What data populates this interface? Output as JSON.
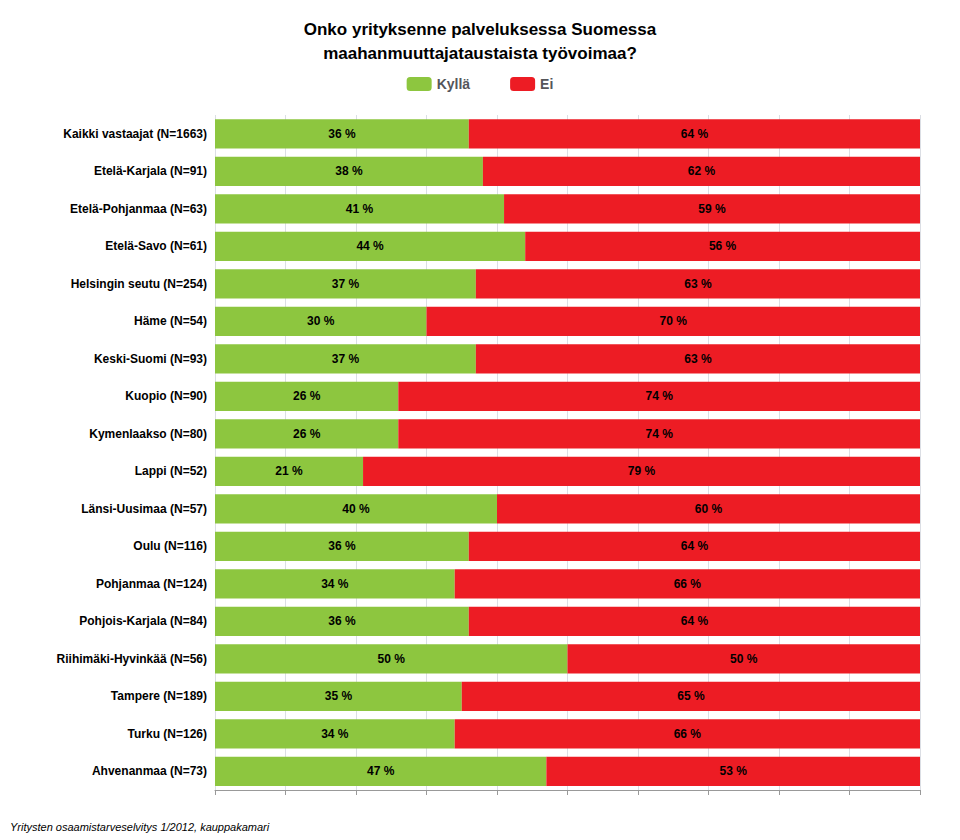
{
  "chart_data": {
    "type": "bar",
    "orientation": "horizontal",
    "stacked": true,
    "title": "Onko yrityksenne palveluksessa Suomessa\nmaahanmuuttajataustaista työvoimaa?",
    "categories": [
      "Kaikki vastaajat (N=1663)",
      "Etelä-Karjala (N=91)",
      "Etelä-Pohjanmaa (N=63)",
      "Etelä-Savo (N=61)",
      "Helsingin seutu (N=254)",
      "Häme (N=54)",
      "Keski-Suomi (N=93)",
      "Kuopio (N=90)",
      "Kymenlaakso (N=80)",
      "Lappi (N=52)",
      "Länsi-Uusimaa (N=57)",
      "Oulu (N=116)",
      "Pohjanmaa (N=124)",
      "Pohjois-Karjala (N=84)",
      "Riihimäki-Hyvinkää (N=56)",
      "Tampere (N=189)",
      "Turku (N=126)",
      "Ahvenanmaa (N=73)"
    ],
    "series": [
      {
        "name": "Kyllä",
        "color": "#8DC63F",
        "values": [
          36,
          38,
          41,
          44,
          37,
          30,
          37,
          26,
          26,
          21,
          40,
          36,
          34,
          36,
          50,
          35,
          34,
          47
        ],
        "value_labels": [
          "36 %",
          "38 %",
          "41 %",
          "44 %",
          "37 %",
          "30 %",
          "37 %",
          "26 %",
          "26 %",
          "21 %",
          "40 %",
          "36 %",
          "34 %",
          "36 %",
          "50 %",
          "35 %",
          "34 %",
          "47 %"
        ]
      },
      {
        "name": "Ei",
        "color": "#ED1C24",
        "values": [
          64,
          62,
          59,
          56,
          63,
          70,
          63,
          74,
          74,
          79,
          60,
          64,
          66,
          64,
          50,
          65,
          66,
          53
        ],
        "value_labels": [
          "64 %",
          "62 %",
          "59 %",
          "56 %",
          "63 %",
          "70 %",
          "63 %",
          "74 %",
          "74 %",
          "79 %",
          "60 %",
          "64 %",
          "66 %",
          "64 %",
          "50 %",
          "65 %",
          "66 %",
          "53 %"
        ]
      }
    ],
    "xlim": [
      0,
      100
    ],
    "xticks": [
      0,
      10,
      20,
      30,
      40,
      50,
      60,
      70,
      80,
      90,
      100
    ],
    "grid": true,
    "legend": "top",
    "data_labels": true,
    "tick_labels": "y",
    "annotations": [
      "Yritysten osaamistarveselvitys 1/2012, kauppakamari"
    ]
  }
}
